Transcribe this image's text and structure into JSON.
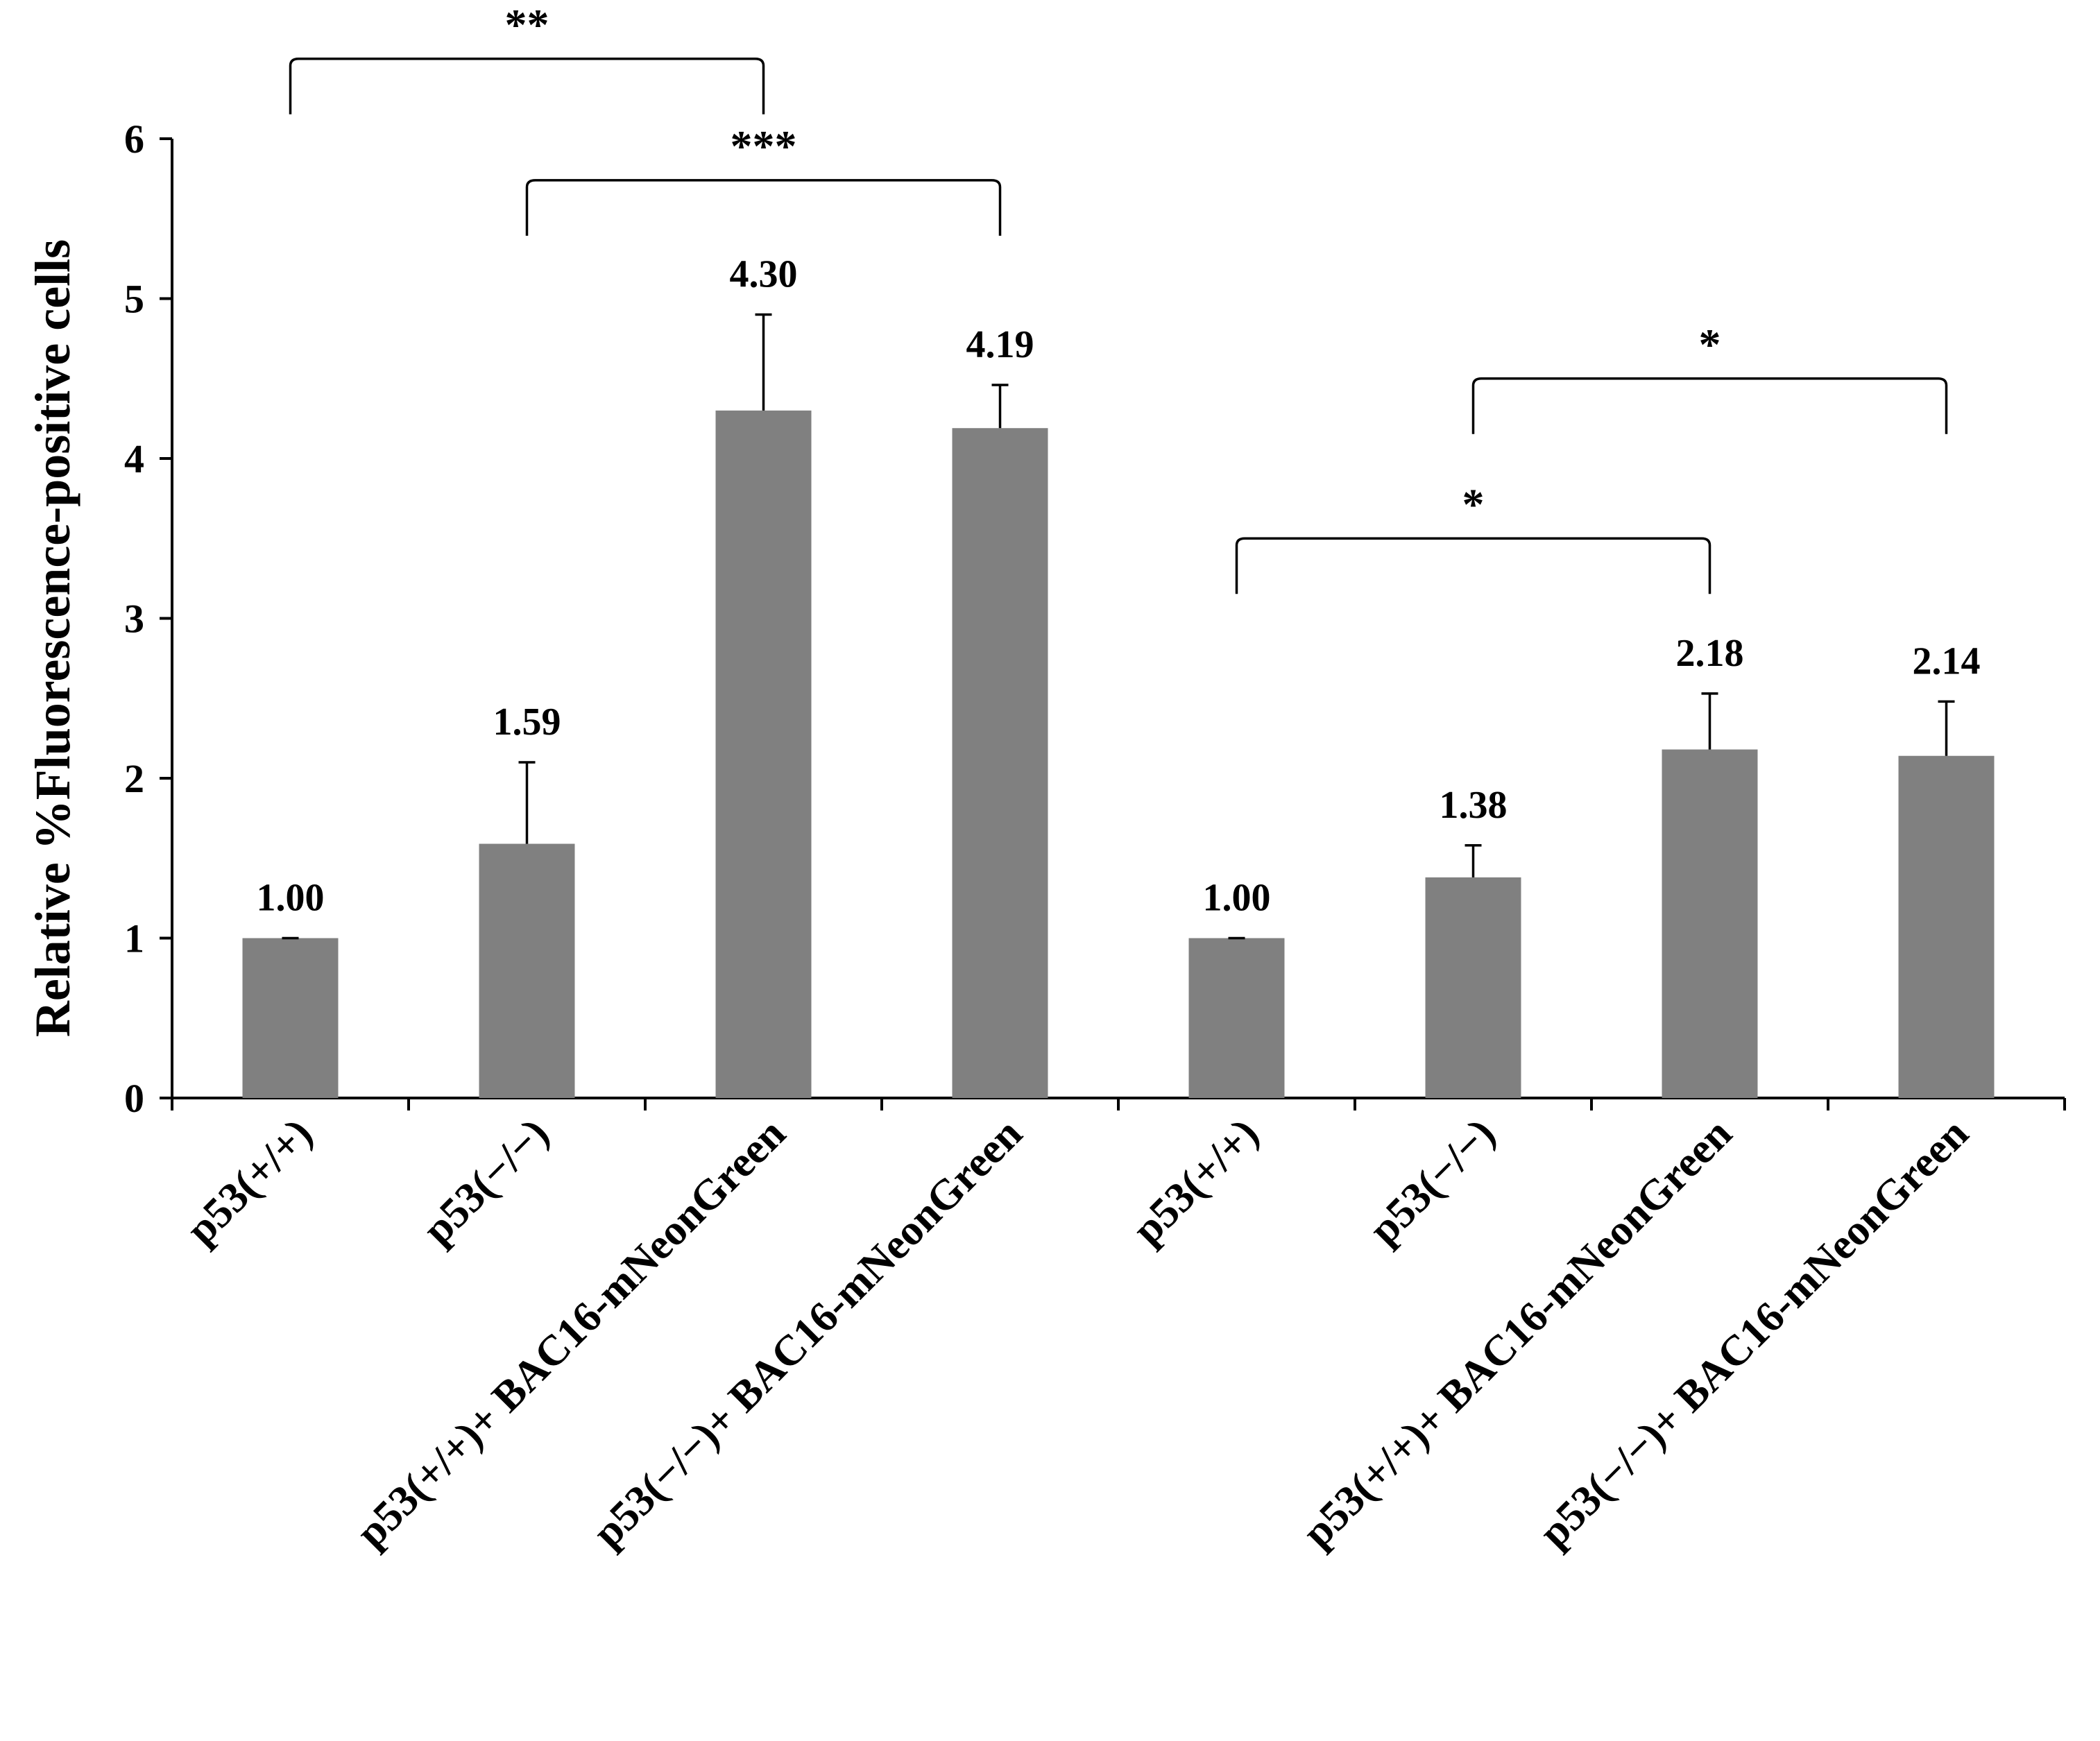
{
  "chart_data": {
    "type": "bar",
    "title": "",
    "xlabel": "",
    "ylabel": "Relative %Fluorescence-positive cells",
    "ylim": [
      0,
      6
    ],
    "yticks": [
      0,
      1,
      2,
      3,
      4,
      5,
      6
    ],
    "grid": false,
    "legend": "none",
    "bar_color": "#808080",
    "categories": [
      "p53(+/+)",
      "p53(−/−)",
      "p53(+/+)+ BAC16-mNeonGreen",
      "p53(−/−)+ BAC16-mNeonGreen",
      "p53(+/+)",
      "p53(−/−)",
      "p53(+/+)+ BAC16-mNeonGreen",
      "p53(−/−)+ BAC16-mNeonGreen"
    ],
    "values": [
      1.0,
      1.59,
      4.3,
      4.19,
      1.0,
      1.38,
      2.18,
      2.14
    ],
    "errors": [
      0.0,
      0.51,
      0.6,
      0.27,
      0.0,
      0.2,
      0.35,
      0.34
    ],
    "value_labels": [
      "1.00",
      "1.59",
      "4.30",
      "4.19",
      "1.00",
      "1.38",
      "2.18",
      "2.14"
    ],
    "annotations": [
      {
        "label": "**",
        "from": 0,
        "to": 2,
        "y": 6.5
      },
      {
        "label": "***",
        "from": 1,
        "to": 3,
        "y": 5.74
      },
      {
        "label": "*",
        "from": 4,
        "to": 6,
        "y": 3.5
      },
      {
        "label": "*",
        "from": 5,
        "to": 7,
        "y": 4.5
      }
    ]
  }
}
